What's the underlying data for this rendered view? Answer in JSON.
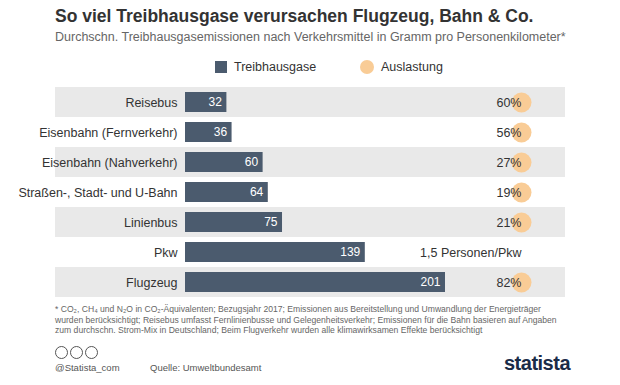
{
  "chart_data": {
    "type": "bar",
    "orientation": "horizontal",
    "title": "So viel Treibhausgase verursachen Flugzeug, Bahn & Co.",
    "subtitle": "Durchschn. Treibhausgasemissionen nach Verkehrsmittel in Gramm pro Personenkilometer*",
    "categories": [
      "Reisebus",
      "Eisenbahn (Fernverkehr)",
      "Eisenbahn (Nahverkehr)",
      "Straßen-, Stadt- und U-Bahn",
      "Linienbus",
      "Pkw",
      "Flugzeug"
    ],
    "series": [
      {
        "name": "Treibhausgase",
        "type": "bar",
        "color": "#4b5b6e",
        "values": [
          32,
          36,
          60,
          64,
          75,
          139,
          201
        ]
      },
      {
        "name": "Auslastung",
        "type": "scatter",
        "marker": "circle",
        "color": "#f9cc96",
        "values": [
          60,
          56,
          27,
          19,
          21,
          null,
          82
        ],
        "value_labels": [
          "60%",
          "56%",
          "27%",
          "19%",
          "21%",
          null,
          "82%"
        ]
      }
    ],
    "annotations": [
      {
        "category": "Pkw",
        "text": "1,5 Personen/Pkw"
      }
    ],
    "xlim": [
      0,
      201
    ],
    "xticks": [],
    "tick_labels": "y",
    "data_labels": true,
    "legend": "top",
    "footnote": "* CO₂, CH₄ und N₂O in CO₂-Äquivalenten; Bezugsjahr 2017; Emissionen aus Bereitstellung und Umwandlung der Energieträger wurden berücksichtigt; Reisebus umfasst Fernlinienbusse und Gelegenheitsverkehr; Emissionen für die Bahn basieren auf Angaben zum durchschn. Strom-Mix in Deutschland; Beim Flugverkehr wurden alle klimawirksamen Effekte berücksichtigt",
    "credit": "@Statista_com",
    "source": "Quelle: Umweltbundesamt",
    "brand": "statista"
  }
}
